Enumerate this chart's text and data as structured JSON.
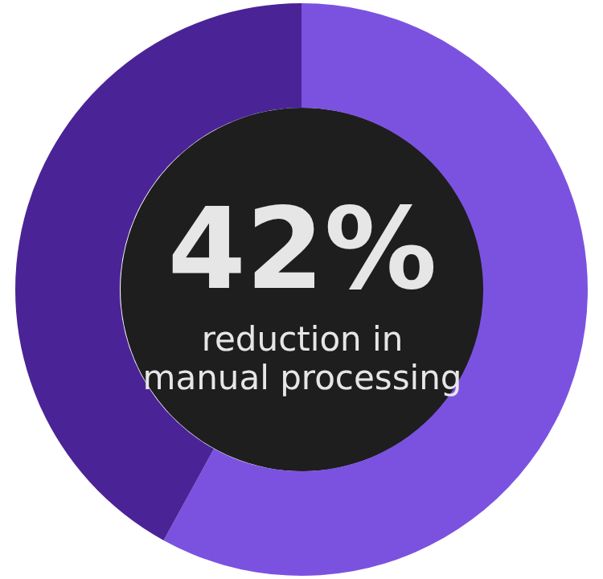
{
  "chart_data": {
    "type": "donut",
    "categories": [
      null,
      null
    ],
    "values": [
      58,
      42
    ],
    "colors": [
      "#7b52e0",
      "#4a2496"
    ],
    "annotations": [
      "42%",
      "reduction in manual processing"
    ]
  }
}
